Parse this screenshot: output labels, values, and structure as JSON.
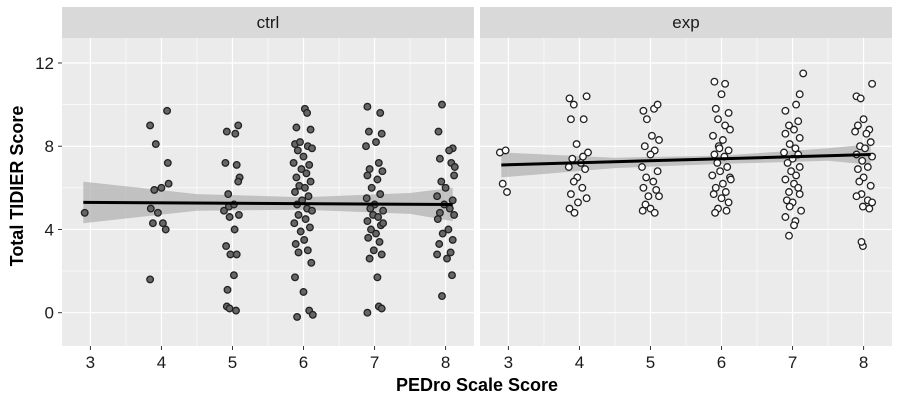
{
  "chart_data": {
    "type": "scatter",
    "title": "",
    "xlabel": "PEDro Scale Score",
    "ylabel": "Total TIDIER Score",
    "xlim": [
      2.6,
      8.4
    ],
    "ylim": [
      -1.6,
      13.2
    ],
    "x_ticks": [
      3,
      4,
      5,
      6,
      7,
      8
    ],
    "y_ticks": [
      0,
      4,
      8,
      12
    ],
    "grid": true,
    "smoother": "linear regression with confidence band",
    "colors": {
      "panel_bg": "#ebebeb",
      "grid": "#ffffff",
      "strip_bg": "#d9d9d9",
      "ctrl_fill": "#666666",
      "exp_fill": "#ffffff",
      "point_stroke": "#222222",
      "line": "#000000",
      "band": "#b3b3b3"
    },
    "panels": [
      {
        "name": "ctrl",
        "fit": {
          "x": [
            2.9,
            8.1
          ],
          "y": [
            5.3,
            5.2
          ]
        },
        "band": {
          "x": [
            2.9,
            4.5,
            6.0,
            7.5,
            8.1
          ],
          "upper": [
            6.3,
            5.7,
            5.55,
            5.75,
            6.0
          ],
          "lower": [
            4.3,
            4.9,
            4.95,
            4.75,
            4.4
          ]
        },
        "points": [
          [
            2.92,
            4.8
          ],
          [
            3.84,
            9.0
          ],
          [
            4.08,
            9.7
          ],
          [
            3.92,
            8.1
          ],
          [
            4.0,
            6.0
          ],
          [
            3.9,
            5.9
          ],
          [
            4.1,
            6.2
          ],
          [
            3.85,
            5.0
          ],
          [
            3.95,
            4.8
          ],
          [
            3.88,
            4.3
          ],
          [
            4.02,
            4.3
          ],
          [
            4.06,
            4.0
          ],
          [
            3.84,
            1.6
          ],
          [
            4.09,
            7.2
          ],
          [
            5.08,
            9.0
          ],
          [
            4.92,
            8.7
          ],
          [
            5.04,
            8.6
          ],
          [
            4.9,
            7.2
          ],
          [
            5.06,
            7.1
          ],
          [
            5.1,
            6.5
          ],
          [
            4.95,
            5.1
          ],
          [
            5.02,
            5.2
          ],
          [
            4.88,
            4.9
          ],
          [
            5.09,
            4.7
          ],
          [
            4.96,
            4.6
          ],
          [
            5.03,
            4.0
          ],
          [
            4.91,
            3.2
          ],
          [
            4.97,
            2.8
          ],
          [
            5.06,
            2.8
          ],
          [
            5.02,
            1.8
          ],
          [
            4.93,
            1.1
          ],
          [
            4.92,
            0.3
          ],
          [
            4.96,
            0.2
          ],
          [
            5.05,
            0.1
          ],
          [
            5.08,
            6.3
          ],
          [
            4.94,
            5.7
          ],
          [
            6.02,
            9.8
          ],
          [
            6.05,
            9.6
          ],
          [
            5.9,
            8.9
          ],
          [
            6.1,
            8.8
          ],
          [
            5.88,
            8.1
          ],
          [
            5.95,
            8.2
          ],
          [
            6.06,
            8.0
          ],
          [
            6.12,
            7.9
          ],
          [
            5.92,
            7.8
          ],
          [
            6.0,
            7.5
          ],
          [
            5.86,
            7.2
          ],
          [
            6.08,
            7.1
          ],
          [
            5.97,
            6.9
          ],
          [
            6.04,
            6.7
          ],
          [
            5.9,
            6.5
          ],
          [
            6.1,
            6.3
          ],
          [
            5.94,
            6.1
          ],
          [
            6.02,
            6.0
          ],
          [
            5.88,
            5.8
          ],
          [
            6.07,
            5.6
          ],
          [
            5.98,
            5.4
          ],
          [
            5.91,
            5.2
          ],
          [
            6.05,
            5.0
          ],
          [
            6.12,
            4.9
          ],
          [
            5.93,
            4.7
          ],
          [
            6.03,
            4.5
          ],
          [
            5.87,
            4.3
          ],
          [
            6.09,
            4.1
          ],
          [
            5.96,
            3.9
          ],
          [
            6.01,
            3.5
          ],
          [
            5.89,
            3.3
          ],
          [
            6.06,
            3.0
          ],
          [
            5.93,
            2.9
          ],
          [
            6.11,
            2.4
          ],
          [
            5.88,
            1.7
          ],
          [
            6.0,
            1.0
          ],
          [
            6.08,
            0.1
          ],
          [
            6.13,
            -0.1
          ],
          [
            5.91,
            -0.2
          ],
          [
            6.9,
            9.9
          ],
          [
            7.08,
            9.6
          ],
          [
            6.92,
            8.7
          ],
          [
            7.1,
            8.6
          ],
          [
            6.88,
            8.0
          ],
          [
            7.02,
            8.2
          ],
          [
            7.06,
            7.2
          ],
          [
            6.93,
            6.9
          ],
          [
            7.11,
            6.8
          ],
          [
            6.9,
            6.6
          ],
          [
            7.04,
            6.4
          ],
          [
            6.96,
            6.0
          ],
          [
            7.08,
            5.7
          ],
          [
            6.89,
            5.5
          ],
          [
            7.0,
            5.2
          ],
          [
            6.94,
            5.0
          ],
          [
            7.12,
            4.9
          ],
          [
            6.98,
            4.7
          ],
          [
            7.05,
            4.6
          ],
          [
            6.9,
            4.4
          ],
          [
            7.09,
            4.2
          ],
          [
            6.95,
            4.0
          ],
          [
            7.02,
            3.8
          ],
          [
            6.91,
            3.6
          ],
          [
            7.07,
            3.4
          ],
          [
            6.99,
            3.0
          ],
          [
            7.1,
            2.8
          ],
          [
            6.93,
            2.6
          ],
          [
            7.04,
            1.7
          ],
          [
            7.06,
            0.3
          ],
          [
            7.1,
            0.2
          ],
          [
            6.9,
            0.0
          ],
          [
            7.12,
            4.3
          ],
          [
            7.95,
            10.0
          ],
          [
            7.9,
            8.7
          ],
          [
            8.1,
            7.9
          ],
          [
            8.05,
            7.8
          ],
          [
            7.92,
            7.4
          ],
          [
            8.08,
            7.2
          ],
          [
            8.12,
            6.6
          ],
          [
            7.94,
            6.3
          ],
          [
            8.0,
            6.0
          ],
          [
            7.88,
            5.6
          ],
          [
            8.1,
            5.4
          ],
          [
            7.98,
            5.2
          ],
          [
            8.06,
            5.0
          ],
          [
            7.92,
            4.8
          ],
          [
            8.12,
            4.7
          ],
          [
            7.89,
            4.5
          ],
          [
            8.04,
            4.0
          ],
          [
            7.96,
            3.8
          ],
          [
            8.1,
            3.5
          ],
          [
            7.91,
            3.3
          ],
          [
            8.07,
            2.9
          ],
          [
            7.88,
            2.8
          ],
          [
            8.02,
            2.6
          ],
          [
            8.09,
            1.8
          ],
          [
            7.95,
            0.8
          ],
          [
            8.13,
            7.0
          ]
        ]
      },
      {
        "name": "exp",
        "fit": {
          "x": [
            2.9,
            8.1
          ],
          "y": [
            7.1,
            7.6
          ]
        },
        "band": {
          "x": [
            2.9,
            4.5,
            6.0,
            7.5,
            8.1
          ],
          "upper": [
            7.7,
            7.45,
            7.55,
            7.9,
            8.1
          ],
          "lower": [
            6.5,
            6.95,
            7.15,
            7.3,
            7.1
          ]
        },
        "points": [
          [
            2.88,
            7.7
          ],
          [
            2.96,
            7.8
          ],
          [
            2.92,
            6.2
          ],
          [
            2.98,
            5.8
          ],
          [
            3.86,
            10.3
          ],
          [
            4.1,
            10.4
          ],
          [
            3.92,
            10.0
          ],
          [
            3.88,
            9.3
          ],
          [
            4.06,
            9.3
          ],
          [
            3.96,
            8.1
          ],
          [
            4.12,
            7.7
          ],
          [
            3.9,
            7.4
          ],
          [
            4.02,
            7.2
          ],
          [
            3.85,
            7.0
          ],
          [
            4.08,
            6.9
          ],
          [
            3.97,
            6.5
          ],
          [
            3.92,
            6.3
          ],
          [
            4.04,
            6.0
          ],
          [
            3.88,
            5.7
          ],
          [
            4.1,
            5.5
          ],
          [
            3.98,
            5.3
          ],
          [
            3.86,
            5.0
          ],
          [
            3.93,
            4.8
          ],
          [
            4.05,
            7.5
          ],
          [
            4.9,
            9.7
          ],
          [
            5.05,
            9.8
          ],
          [
            5.1,
            10.0
          ],
          [
            4.95,
            9.3
          ],
          [
            5.02,
            8.5
          ],
          [
            5.12,
            8.3
          ],
          [
            4.92,
            8.0
          ],
          [
            5.06,
            7.8
          ],
          [
            5.0,
            7.6
          ],
          [
            4.88,
            7.0
          ],
          [
            5.1,
            6.8
          ],
          [
            4.94,
            6.5
          ],
          [
            5.04,
            6.3
          ],
          [
            4.9,
            6.0
          ],
          [
            5.08,
            5.9
          ],
          [
            4.97,
            5.6
          ],
          [
            5.12,
            5.6
          ],
          [
            4.93,
            5.2
          ],
          [
            5.0,
            5.0
          ],
          [
            4.89,
            4.9
          ],
          [
            5.06,
            4.8
          ],
          [
            5.9,
            11.1
          ],
          [
            6.05,
            11.0
          ],
          [
            6.0,
            10.5
          ],
          [
            5.92,
            9.8
          ],
          [
            6.1,
            9.6
          ],
          [
            5.95,
            9.3
          ],
          [
            6.05,
            9.0
          ],
          [
            6.12,
            8.8
          ],
          [
            5.88,
            8.5
          ],
          [
            6.02,
            8.3
          ],
          [
            5.96,
            8.0
          ],
          [
            6.1,
            7.8
          ],
          [
            5.9,
            7.6
          ],
          [
            6.04,
            7.5
          ],
          [
            5.94,
            7.2
          ],
          [
            6.08,
            7.0
          ],
          [
            5.98,
            6.8
          ],
          [
            5.87,
            6.6
          ],
          [
            6.12,
            6.5
          ],
          [
            6.02,
            6.2
          ],
          [
            5.92,
            6.0
          ],
          [
            6.06,
            5.8
          ],
          [
            5.89,
            5.7
          ],
          [
            6.0,
            5.5
          ],
          [
            6.1,
            5.3
          ],
          [
            5.95,
            5.0
          ],
          [
            6.07,
            4.9
          ],
          [
            5.91,
            4.8
          ],
          [
            6.13,
            6.4
          ],
          [
            5.97,
            7.9
          ],
          [
            7.1,
            10.5
          ],
          [
            7.05,
            10.0
          ],
          [
            7.15,
            11.5
          ],
          [
            6.9,
            9.7
          ],
          [
            7.08,
            9.2
          ],
          [
            6.95,
            9.0
          ],
          [
            7.02,
            8.8
          ],
          [
            6.9,
            8.6
          ],
          [
            7.1,
            8.4
          ],
          [
            6.96,
            8.1
          ],
          [
            7.04,
            7.9
          ],
          [
            6.88,
            7.7
          ],
          [
            7.08,
            7.6
          ],
          [
            7.0,
            7.4
          ],
          [
            6.93,
            7.2
          ],
          [
            7.1,
            7.0
          ],
          [
            6.98,
            6.8
          ],
          [
            7.05,
            6.6
          ],
          [
            6.9,
            6.4
          ],
          [
            7.02,
            6.2
          ],
          [
            7.08,
            6.0
          ],
          [
            6.95,
            5.8
          ],
          [
            7.1,
            5.7
          ],
          [
            6.92,
            5.4
          ],
          [
            7.0,
            5.3
          ],
          [
            6.96,
            5.1
          ],
          [
            7.12,
            4.9
          ],
          [
            6.9,
            4.6
          ],
          [
            7.04,
            4.4
          ],
          [
            7.02,
            4.2
          ],
          [
            6.95,
            3.7
          ],
          [
            7.9,
            10.4
          ],
          [
            7.96,
            10.3
          ],
          [
            8.12,
            11.0
          ],
          [
            8.0,
            9.3
          ],
          [
            7.92,
            9.0
          ],
          [
            8.08,
            8.8
          ],
          [
            8.04,
            8.6
          ],
          [
            7.88,
            8.7
          ],
          [
            8.1,
            8.2
          ],
          [
            7.95,
            8.0
          ],
          [
            8.02,
            7.9
          ],
          [
            7.9,
            7.6
          ],
          [
            8.12,
            7.5
          ],
          [
            7.98,
            7.3
          ],
          [
            8.06,
            7.0
          ],
          [
            7.92,
            6.9
          ],
          [
            8.0,
            6.5
          ],
          [
            7.94,
            6.3
          ],
          [
            8.1,
            6.1
          ],
          [
            7.97,
            5.7
          ],
          [
            7.9,
            5.6
          ],
          [
            8.06,
            5.4
          ],
          [
            7.99,
            5.1
          ],
          [
            8.08,
            5.0
          ],
          [
            8.12,
            5.3
          ],
          [
            7.99,
            3.2
          ],
          [
            7.97,
            3.4
          ]
        ]
      }
    ]
  }
}
